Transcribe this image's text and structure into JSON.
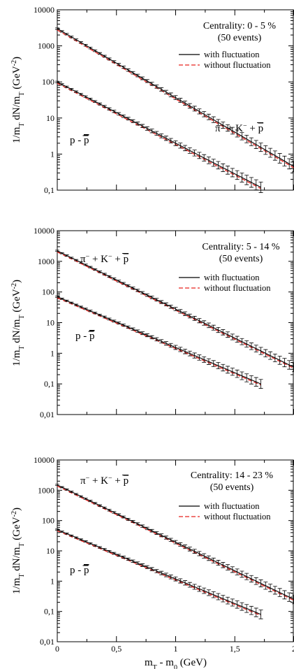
{
  "chart_data": [
    {
      "type": "line",
      "panel": "top",
      "annotation_lines": [
        "Centrality: 0 - 5 %",
        "(50 events)"
      ],
      "ylabel": "1/m_T dN/m_T (GeV^-2)",
      "xlabel": "",
      "xlim": [
        0,
        2
      ],
      "ylim": [
        0.1,
        10000
      ],
      "yscale": "log",
      "x_ticks": [
        0,
        0.5,
        1,
        1.5,
        2
      ],
      "x_tick_labels": [],
      "y_ticks": [
        0.1,
        1,
        10,
        100,
        1000,
        10000
      ],
      "y_tick_labels": [
        "0,1",
        "1",
        "10",
        "100",
        "1000",
        "10000"
      ],
      "legend": {
        "position": "top-right",
        "entries": [
          "with fluctuation",
          "without fluctuation"
        ]
      },
      "curves": [
        {
          "label_parts": [
            "π",
            "+ K",
            "+ p"
          ],
          "x_range": [
            0,
            2
          ],
          "y_start": 3000,
          "y_end": 0.45,
          "x_end": 2,
          "errors": true
        },
        {
          "label_parts": [
            "p - p"
          ],
          "x_range": [
            0,
            1.72
          ],
          "y_start": 100,
          "y_end": 0.12,
          "x_end": 1.72,
          "errors": true
        }
      ]
    },
    {
      "type": "line",
      "panel": "middle",
      "annotation_lines": [
        "Centrality: 5 - 14 %",
        "(50 events)"
      ],
      "ylabel": "1/m_T dN/m_T (GeV^-2)",
      "xlabel": "",
      "xlim": [
        0,
        2
      ],
      "ylim": [
        0.01,
        10000
      ],
      "yscale": "log",
      "x_ticks": [
        0,
        0.5,
        1,
        1.5,
        2
      ],
      "x_tick_labels": [],
      "y_ticks": [
        0.01,
        0.1,
        1,
        10,
        100,
        1000,
        10000
      ],
      "y_tick_labels": [
        "0,01",
        "0,1",
        "1",
        "10",
        "100",
        "1000",
        "10000"
      ],
      "legend": {
        "position": "top-right",
        "entries": [
          "with fluctuation",
          "without fluctuation"
        ]
      },
      "curves": [
        {
          "label_parts": [
            "π",
            "+ K",
            "+ p"
          ],
          "x_range": [
            0,
            2
          ],
          "y_start": 2200,
          "y_end": 0.35,
          "x_end": 2,
          "errors": true
        },
        {
          "label_parts": [
            "p - p"
          ],
          "x_range": [
            0,
            1.72
          ],
          "y_start": 70,
          "y_end": 0.1,
          "x_end": 1.72,
          "errors": true
        }
      ]
    },
    {
      "type": "line",
      "panel": "bottom",
      "annotation_lines": [
        "Centrality: 14 - 23 %",
        "(50 events)"
      ],
      "ylabel": "1/m_T dN/m_T (GeV^-2)",
      "xlabel": "m_T - m_0 (GeV)",
      "xlim": [
        0,
        2
      ],
      "ylim": [
        0.01,
        10000
      ],
      "yscale": "log",
      "x_ticks": [
        0,
        0.5,
        1,
        1.5,
        2
      ],
      "x_tick_labels": [
        "0",
        "0,5",
        "1",
        "1,5",
        "2"
      ],
      "y_ticks": [
        0.01,
        0.1,
        1,
        10,
        100,
        1000,
        10000
      ],
      "y_tick_labels": [
        "0,01",
        "0,1",
        "1",
        "10",
        "100",
        "1000",
        "10000"
      ],
      "legend": {
        "position": "top-right",
        "entries": [
          "with fluctuation",
          "without fluctuation"
        ]
      },
      "curves": [
        {
          "label_parts": [
            "π",
            "+ K",
            "+ p"
          ],
          "x_range": [
            0,
            2
          ],
          "y_start": 1500,
          "y_end": 0.25,
          "x_end": 2,
          "errors": true
        },
        {
          "label_parts": [
            "p - p"
          ],
          "x_range": [
            0,
            1.72
          ],
          "y_start": 50,
          "y_end": 0.08,
          "x_end": 1.72,
          "errors": true
        }
      ]
    }
  ],
  "colors": {
    "with_fluctuation": "#000000",
    "without_fluctuation": "#e8231f",
    "axis": "#000000"
  }
}
